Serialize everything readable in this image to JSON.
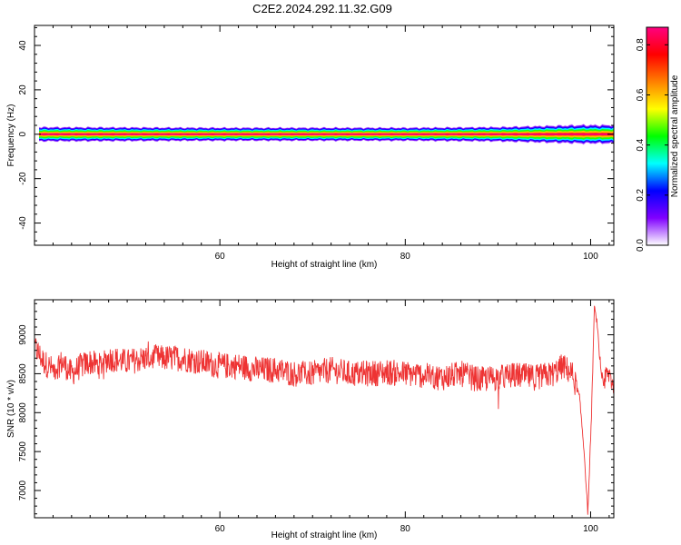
{
  "title": "C2E2.2024.292.11.32.G09",
  "chart_data": [
    {
      "type": "heatmap",
      "xlabel": "Height of straight line (km)",
      "ylabel": "Frequency (Hz)",
      "xlim": [
        40,
        102.5
      ],
      "ylim": [
        -50,
        49
      ],
      "x_ticks": [
        "60",
        "80",
        "100"
      ],
      "y_ticks": [
        "40",
        "20",
        "0",
        "-20",
        "-40"
      ],
      "colorbar": {
        "label": "Normalized spectral amplitude",
        "range": [
          0,
          0.87
        ],
        "ticks": [
          "0.0",
          "0.2",
          "0.4",
          "0.6",
          "0.8"
        ],
        "colormap": [
          "#ffffff",
          "#8000ff",
          "#0000ff",
          "#00ffff",
          "#00ff00",
          "#ffff00",
          "#ff8000",
          "#ff0000",
          "#ff0080"
        ]
      },
      "band": {
        "center_hz": 0,
        "core_amplitude": 0.87,
        "spread_hz": [
          {
            "x": 40.5,
            "hz": 3.5
          },
          {
            "x": 60,
            "hz": 3.2
          },
          {
            "x": 80,
            "hz": 3.2
          },
          {
            "x": 90,
            "hz": 3.5
          },
          {
            "x": 99,
            "hz": 4.5
          },
          {
            "x": 102.5,
            "hz": 4.5
          }
        ]
      }
    },
    {
      "type": "line",
      "xlabel": "Height of straight line (km)",
      "ylabel": "SNR (10 * v/v)",
      "xlim": [
        40,
        102.5
      ],
      "ylim": [
        6650,
        9450
      ],
      "x_ticks": [
        "60",
        "80",
        "100"
      ],
      "y_ticks": [
        "9000",
        "8500",
        "8000",
        "7500",
        "7000"
      ],
      "series": [
        {
          "color": "#ee3333",
          "x": [
            40,
            41,
            42,
            43,
            44,
            45,
            46,
            47,
            48,
            50,
            52,
            54,
            56,
            58,
            60,
            62,
            64,
            66,
            68,
            70,
            72,
            74,
            76,
            78,
            80,
            82,
            84,
            86,
            88,
            90,
            92,
            94,
            96,
            97,
            98,
            98.8,
            99.3,
            99.7,
            100.1,
            100.4,
            100.7,
            101,
            101.3,
            101.6,
            102,
            102.5
          ],
          "values": [
            8850,
            8650,
            8550,
            8650,
            8500,
            8600,
            8650,
            8600,
            8700,
            8650,
            8700,
            8700,
            8700,
            8650,
            8600,
            8600,
            8550,
            8550,
            8500,
            8500,
            8550,
            8500,
            8500,
            8520,
            8500,
            8480,
            8450,
            8500,
            8420,
            8450,
            8480,
            8450,
            8500,
            8600,
            8500,
            8200,
            7500,
            6700,
            8000,
            9350,
            9150,
            8650,
            8300,
            8450,
            8500,
            8350
          ],
          "noise_amplitude": 170
        }
      ]
    }
  ]
}
